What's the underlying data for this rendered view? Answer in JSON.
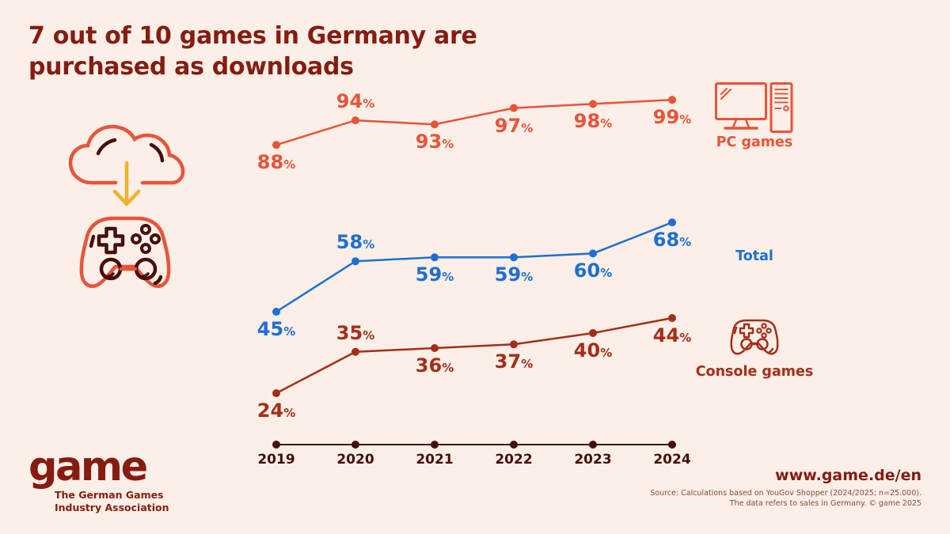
{
  "title": "7 out of 10 games in Germany are purchased as downloads",
  "chart_data": {
    "type": "line",
    "x": [
      "2019",
      "2020",
      "2021",
      "2022",
      "2023",
      "2024"
    ],
    "series": [
      {
        "name": "PC games",
        "values": [
          88,
          94,
          93,
          97,
          98,
          99
        ],
        "color": "#E8543A"
      },
      {
        "name": "Total",
        "values": [
          45,
          58,
          59,
          59,
          60,
          68
        ],
        "color": "#1E6FD3"
      },
      {
        "name": "Console games",
        "values": [
          24,
          35,
          36,
          37,
          40,
          44
        ],
        "color": "#A52E1B"
      }
    ],
    "unit": "%",
    "ylim": [
      0,
      100
    ],
    "grid": false,
    "legend_position": "right",
    "data_labels": true
  },
  "footer": {
    "logo_text": "game",
    "logo_subtitle_line1": "The German Games",
    "logo_subtitle_line2": "Industry Association",
    "website": "www.game.de/en",
    "source_line1": "Source: Calculations based on YouGov Shopper (2024/2025; n=25.000).",
    "source_line2": "The data refers to sales in Germany. © game 2025"
  },
  "icons": {
    "illustration": "cloud-download-to-controller-icon",
    "pc_legend": "desktop-pc-icon",
    "console_legend": "gamepad-icon"
  },
  "colors": {
    "background": "#FBEFE7",
    "title_maroon": "#851C12",
    "axis_dark": "#450F0A",
    "pc_orange": "#E8543A",
    "total_blue": "#1E6FD3",
    "console_red": "#A52E1B",
    "arrow_gold": "#EFB32A",
    "source_text": "#8A493F"
  }
}
